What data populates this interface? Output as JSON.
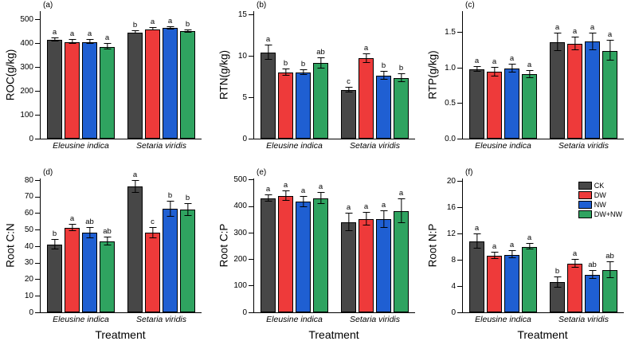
{
  "figure": {
    "background": "#ffffff"
  },
  "treatments": [
    "CK",
    "DW",
    "NW",
    "DW+NW"
  ],
  "treatment_colors": {
    "CK": "#474747",
    "DW": "#ee3a3a",
    "NW": "#1f5fd2",
    "DW+NW": "#2fa360"
  },
  "categories": [
    "Eleusine indica",
    "Setaria viridis"
  ],
  "x_axis_title": "Treatment",
  "legend": {
    "entries": [
      {
        "label": "CK",
        "color": "#474747"
      },
      {
        "label": "DW",
        "color": "#ee3a3a"
      },
      {
        "label": "NW",
        "color": "#1f5fd2"
      },
      {
        "label": "DW+NW",
        "color": "#2fa360"
      }
    ]
  },
  "chart_data": [
    {
      "type": "bar",
      "panel_label": "(a)",
      "ylabel": "ROC(g/kg)",
      "ylim": [
        0,
        535
      ],
      "ytick_values": [
        0,
        100,
        200,
        300,
        400,
        500
      ],
      "ytick_labels": [
        "0",
        "100",
        "200",
        "300",
        "400",
        "500"
      ],
      "categories": [
        "Eleusine indica",
        "Setaria viridis"
      ],
      "x_title": "",
      "show_legend": false,
      "series": [
        {
          "name": "CK",
          "color": "#474747",
          "values": [
            415,
            446
          ],
          "errors": [
            6,
            5
          ],
          "letters": [
            "a",
            "b"
          ]
        },
        {
          "name": "DW",
          "color": "#ee3a3a",
          "values": [
            406,
            459
          ],
          "errors": [
            9,
            5
          ],
          "letters": [
            "a",
            "a"
          ]
        },
        {
          "name": "NW",
          "color": "#1f5fd2",
          "values": [
            406,
            464
          ],
          "errors": [
            9,
            5
          ],
          "letters": [
            "a",
            "a"
          ]
        },
        {
          "name": "DW+NW",
          "color": "#2fa360",
          "values": [
            386,
            450
          ],
          "errors": [
            11,
            5
          ],
          "letters": [
            "a",
            "b"
          ]
        }
      ]
    },
    {
      "type": "bar",
      "panel_label": "(b)",
      "ylabel": "RTN(g/kg)",
      "ylim": [
        0,
        15.4
      ],
      "ytick_values": [
        0,
        5,
        10,
        15
      ],
      "ytick_labels": [
        "0",
        "5",
        "10",
        "15"
      ],
      "categories": [
        "Eleusine indica",
        "Setaria viridis"
      ],
      "x_title": "",
      "show_legend": false,
      "series": [
        {
          "name": "CK",
          "color": "#474747",
          "values": [
            10.4,
            5.9
          ],
          "errors": [
            0.9,
            0.3
          ],
          "letters": [
            "a",
            "c"
          ]
        },
        {
          "name": "DW",
          "color": "#ee3a3a",
          "values": [
            8.0,
            9.7
          ],
          "errors": [
            0.35,
            0.55
          ],
          "letters": [
            "b",
            "a"
          ]
        },
        {
          "name": "NW",
          "color": "#1f5fd2",
          "values": [
            8.0,
            7.6
          ],
          "errors": [
            0.3,
            0.5
          ],
          "letters": [
            "b",
            "b"
          ]
        },
        {
          "name": "DW+NW",
          "color": "#2fa360",
          "values": [
            9.1,
            7.3
          ],
          "errors": [
            0.65,
            0.5
          ],
          "letters": [
            "ab",
            "b"
          ]
        }
      ]
    },
    {
      "type": "bar",
      "panel_label": "(c)",
      "ylabel": "RTP(g/kg)",
      "ylim": [
        0,
        1.8
      ],
      "ytick_values": [
        0,
        0.5,
        1.0,
        1.5
      ],
      "ytick_labels": [
        "0.0",
        "0.5",
        "1.0",
        "1.5"
      ],
      "categories": [
        "Eleusine indica",
        "Setaria viridis"
      ],
      "x_title": "",
      "show_legend": false,
      "series": [
        {
          "name": "CK",
          "color": "#474747",
          "values": [
            0.98,
            1.36
          ],
          "errors": [
            0.03,
            0.12
          ],
          "letters": [
            "a",
            "a"
          ]
        },
        {
          "name": "DW",
          "color": "#ee3a3a",
          "values": [
            0.94,
            1.34
          ],
          "errors": [
            0.06,
            0.09
          ],
          "letters": [
            "a",
            "a"
          ]
        },
        {
          "name": "NW",
          "color": "#1f5fd2",
          "values": [
            0.99,
            1.37
          ],
          "errors": [
            0.06,
            0.12
          ],
          "letters": [
            "a",
            "a"
          ]
        },
        {
          "name": "DW+NW",
          "color": "#2fa360",
          "values": [
            0.91,
            1.24
          ],
          "errors": [
            0.05,
            0.14
          ],
          "letters": [
            "a",
            "a"
          ]
        }
      ]
    },
    {
      "type": "bar",
      "panel_label": "(d)",
      "ylabel": "Root C:N",
      "ylim": [
        0,
        81
      ],
      "ytick_values": [
        0,
        10,
        20,
        30,
        40,
        50,
        60,
        70,
        80
      ],
      "ytick_labels": [
        "0",
        "10",
        "20",
        "30",
        "40",
        "50",
        "60",
        "70",
        "80"
      ],
      "categories": [
        "Eleusine indica",
        "Setaria viridis"
      ],
      "x_title": "Treatment",
      "show_legend": false,
      "series": [
        {
          "name": "CK",
          "color": "#474747",
          "values": [
            41,
            76
          ],
          "errors": [
            3,
            3.5
          ],
          "letters": [
            "b",
            "a"
          ]
        },
        {
          "name": "DW",
          "color": "#ee3a3a",
          "values": [
            51,
            48
          ],
          "errors": [
            2,
            3
          ],
          "letters": [
            "a",
            "c"
          ]
        },
        {
          "name": "NW",
          "color": "#1f5fd2",
          "values": [
            48,
            62.5
          ],
          "errors": [
            3,
            4.5
          ],
          "letters": [
            "ab",
            "b"
          ]
        },
        {
          "name": "DW+NW",
          "color": "#2fa360",
          "values": [
            43,
            62
          ],
          "errors": [
            2.5,
            3.5
          ],
          "letters": [
            "ab",
            "b"
          ]
        }
      ]
    },
    {
      "type": "bar",
      "panel_label": "(e)",
      "ylabel": "Root C:P",
      "ylim": [
        0,
        505
      ],
      "ytick_values": [
        0,
        100,
        200,
        300,
        400,
        500
      ],
      "ytick_labels": [
        "0",
        "100",
        "200",
        "300",
        "400",
        "500"
      ],
      "categories": [
        "Eleusine indica",
        "Setaria viridis"
      ],
      "x_title": "Treatment",
      "show_legend": false,
      "series": [
        {
          "name": "CK",
          "color": "#474747",
          "values": [
            430,
            340
          ],
          "errors": [
            12,
            33
          ],
          "letters": [
            "a",
            "a"
          ]
        },
        {
          "name": "DW",
          "color": "#ee3a3a",
          "values": [
            438,
            352
          ],
          "errors": [
            18,
            23
          ],
          "letters": [
            "a",
            "a"
          ]
        },
        {
          "name": "NW",
          "color": "#1f5fd2",
          "values": [
            417,
            351
          ],
          "errors": [
            20,
            32
          ],
          "letters": [
            "a",
            "a"
          ]
        },
        {
          "name": "DW+NW",
          "color": "#2fa360",
          "values": [
            430,
            383
          ],
          "errors": [
            22,
            45
          ],
          "letters": [
            "a",
            "a"
          ]
        }
      ]
    },
    {
      "type": "bar",
      "panel_label": "(f)",
      "ylabel": "Root N:P",
      "ylim": [
        0,
        20.4
      ],
      "ytick_values": [
        0,
        4,
        8,
        12,
        16,
        20
      ],
      "ytick_labels": [
        "0",
        "4",
        "8",
        "12",
        "16",
        "20"
      ],
      "categories": [
        "Eleusine indica",
        "Setaria viridis"
      ],
      "x_title": "Treatment",
      "show_legend": true,
      "series": [
        {
          "name": "CK",
          "color": "#474747",
          "values": [
            10.8,
            4.6
          ],
          "errors": [
            1.1,
            0.8
          ],
          "letters": [
            "a",
            "b"
          ]
        },
        {
          "name": "DW",
          "color": "#ee3a3a",
          "values": [
            8.6,
            7.4
          ],
          "errors": [
            0.5,
            0.6
          ],
          "letters": [
            "a",
            "a"
          ]
        },
        {
          "name": "NW",
          "color": "#1f5fd2",
          "values": [
            8.8,
            5.7
          ],
          "errors": [
            0.6,
            0.6
          ],
          "letters": [
            "a",
            "ab"
          ]
        },
        {
          "name": "DW+NW",
          "color": "#2fa360",
          "values": [
            10.0,
            6.4
          ],
          "errors": [
            0.4,
            1.2
          ],
          "letters": [
            "a",
            "ab"
          ]
        }
      ]
    }
  ]
}
